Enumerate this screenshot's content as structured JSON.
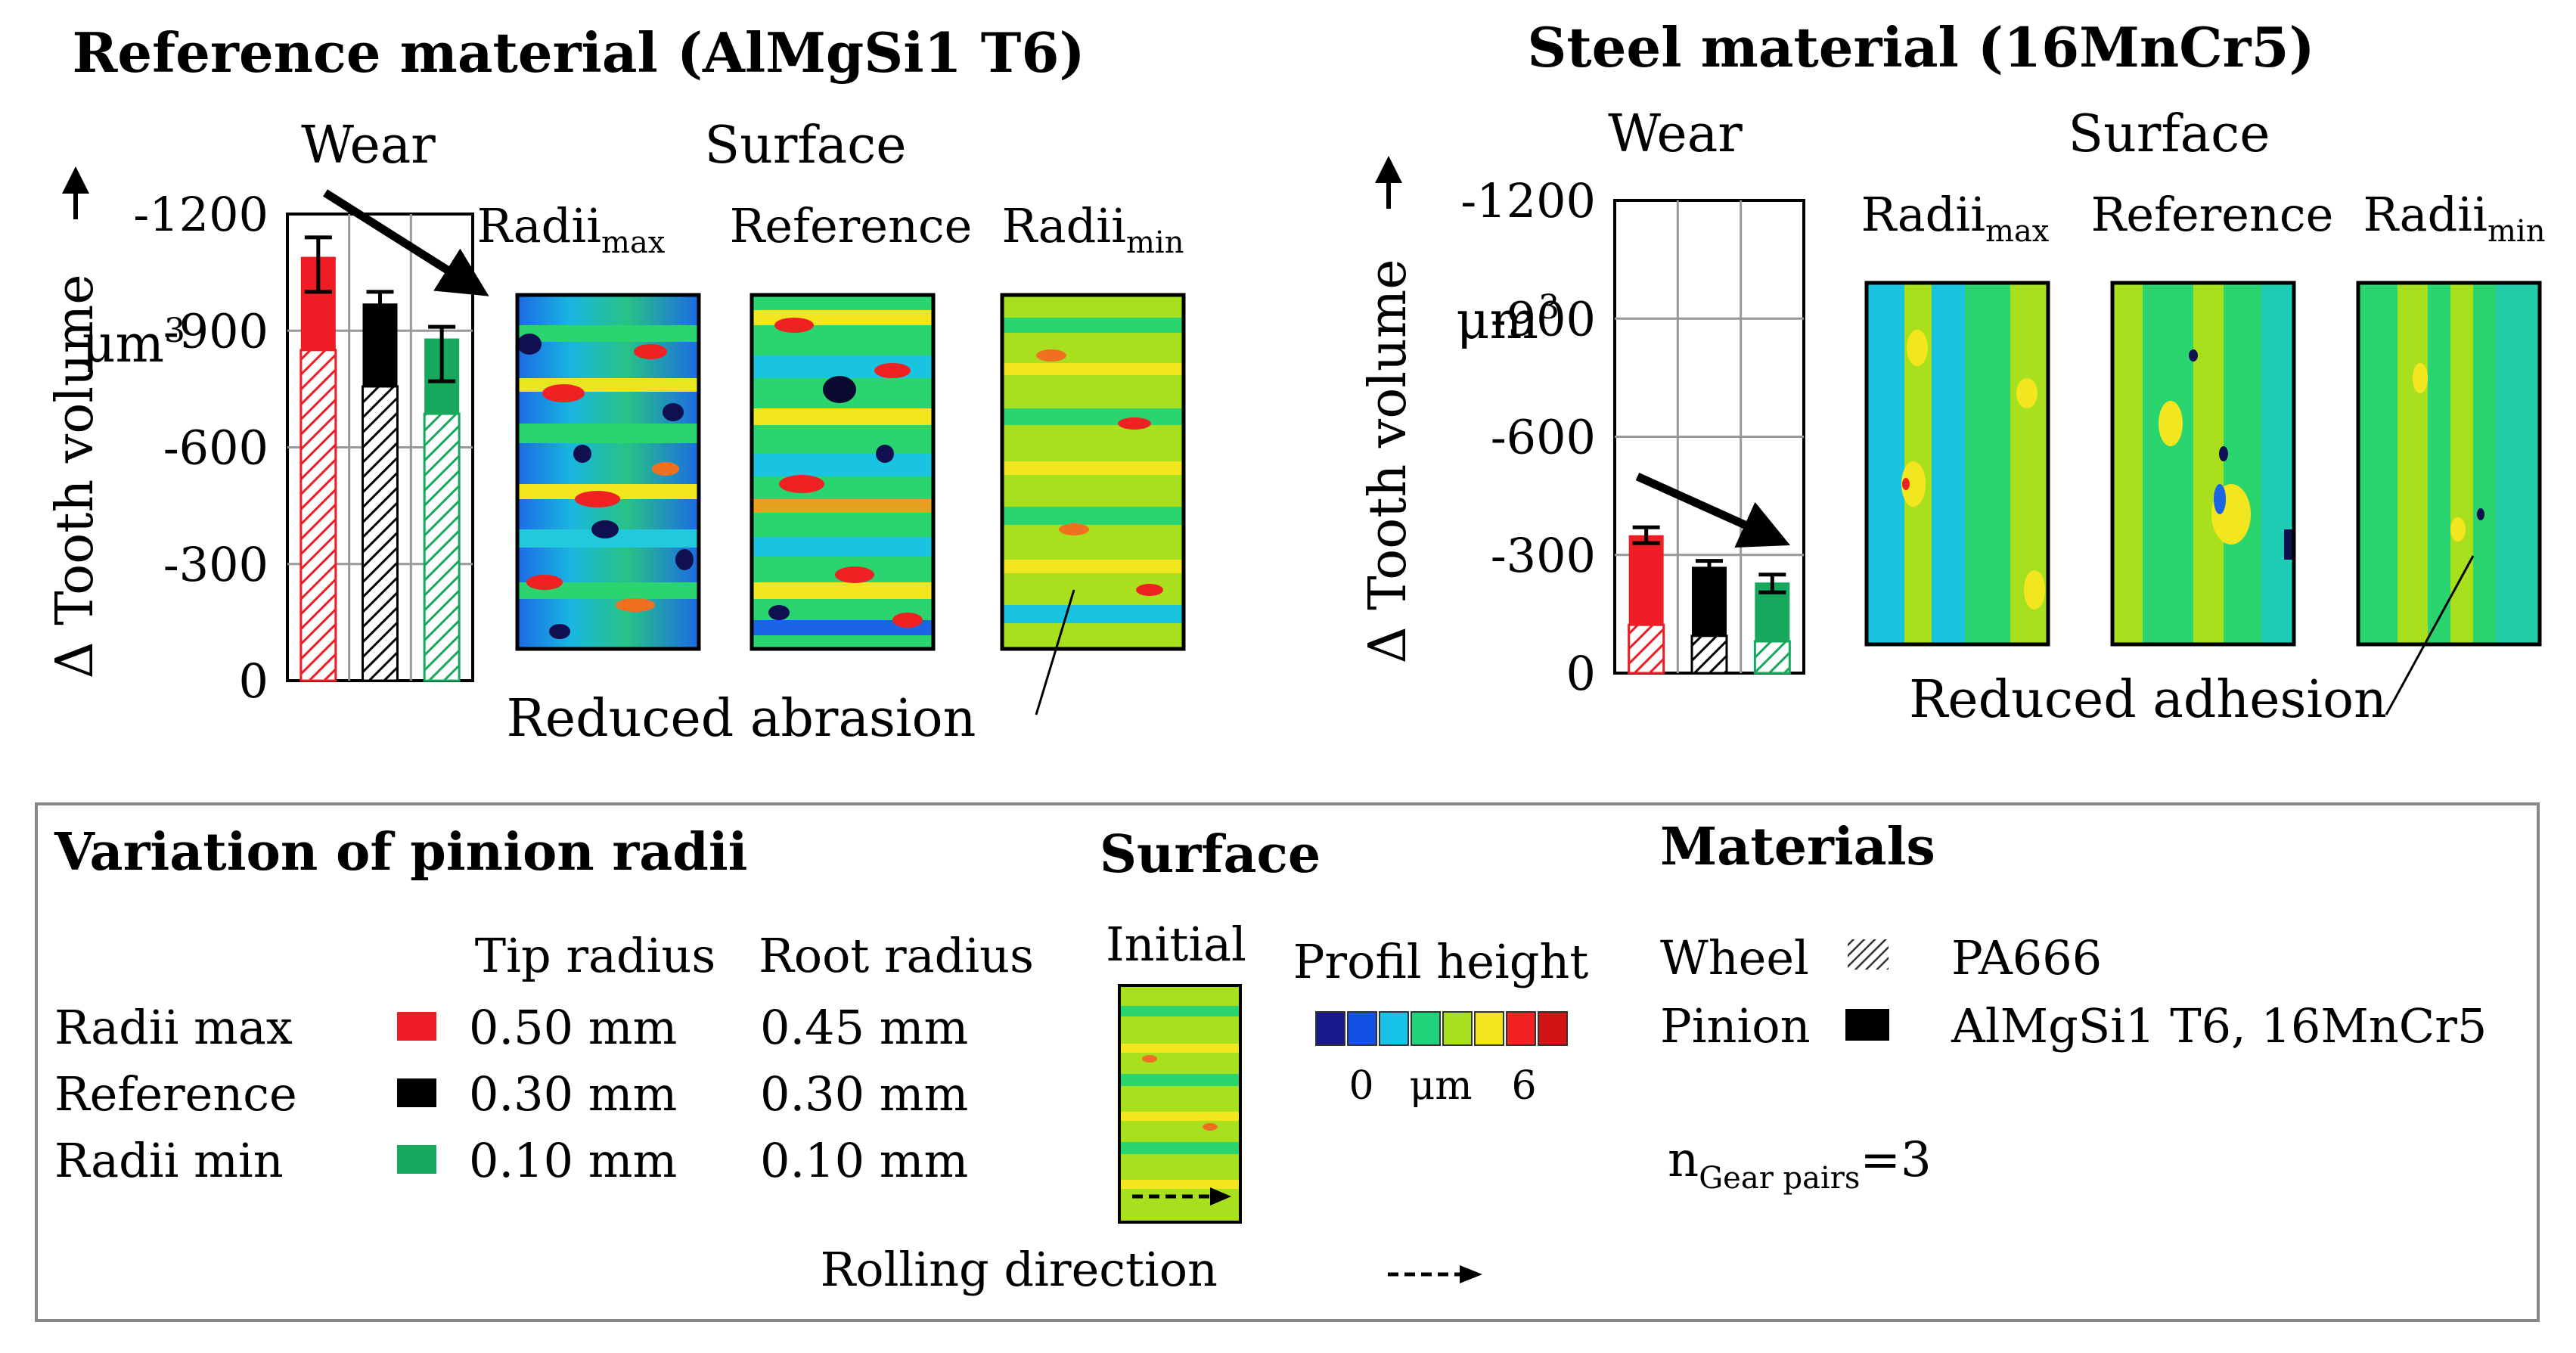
{
  "chart_data": [
    {
      "type": "bar",
      "title": "Reference material (AlMgSi1 T6)",
      "section_wear": "Wear",
      "section_surface": "Surface",
      "ylabel": "Δ Tooth volume",
      "yunit_prefix": "μm",
      "yunit_exp": "3",
      "yticks": [
        "-1200",
        "-900",
        "-600",
        "-300",
        "0"
      ],
      "ylim": [
        0,
        -1200
      ],
      "categories": [
        "Radii max",
        "Reference",
        "Radii min"
      ],
      "values": [
        -1090,
        -970,
        -880
      ],
      "errors": [
        [
          -1000,
          -1140
        ],
        [
          -880,
          -1000
        ],
        [
          -770,
          -910
        ]
      ],
      "colors": [
        "#ee1c25",
        "#000000",
        "#16a85c"
      ],
      "surface_labels": [
        {
          "base": "Radii",
          "sub": "max"
        },
        {
          "base": "Reference",
          "sub": ""
        },
        {
          "base": "Radii",
          "sub": "min"
        }
      ],
      "annotation": "Reduced abrasion"
    },
    {
      "type": "bar",
      "title": "Steel material (16MnCr5)",
      "section_wear": "Wear",
      "section_surface": "Surface",
      "ylabel": "Δ Tooth volume",
      "yunit_prefix": "μm",
      "yunit_exp": "3",
      "yticks": [
        "-1200",
        "-900",
        "-600",
        "-300",
        "0"
      ],
      "ylim": [
        0,
        -1200
      ],
      "categories": [
        "Radii max",
        "Reference",
        "Radii min"
      ],
      "values": [
        -350,
        -270,
        -230
      ],
      "errors": [
        [
          -330,
          -370
        ],
        [
          -250,
          -285
        ],
        [
          -205,
          -250
        ]
      ],
      "colors": [
        "#ee1c25",
        "#000000",
        "#16a85c"
      ],
      "surface_labels": [
        {
          "base": "Radii",
          "sub": "max"
        },
        {
          "base": "Reference",
          "sub": ""
        },
        {
          "base": "Radii",
          "sub": "min"
        }
      ],
      "annotation": "Reduced adhesion"
    }
  ],
  "legend": {
    "variation_title": "Variation of pinion radii",
    "col_tip": "Tip radius",
    "col_root": "Root radius",
    "rows": [
      {
        "name": "Radii max",
        "tip": "0.50 mm",
        "root": "0.45 mm",
        "color": "#ee1c25"
      },
      {
        "name": "Reference",
        "tip": "0.30 mm",
        "root": "0.30 mm",
        "color": "#000000"
      },
      {
        "name": "Radii min",
        "tip": "0.10 mm",
        "root": "0.10 mm",
        "color": "#16a85c"
      }
    ],
    "surface_title": "Surface",
    "initial_label": "Initial",
    "profil_title": "Profil height",
    "scale_colors": [
      "#1a1a8c",
      "#1450e6",
      "#17c3e6",
      "#20d27a",
      "#a8e01e",
      "#f2e61e",
      "#f22222",
      "#d21414"
    ],
    "scale_min": "0",
    "scale_unit": "μm",
    "scale_max": "6",
    "rolling_direction": "Rolling direction",
    "materials_title": "Materials",
    "wheel_label": "Wheel",
    "wheel_material": "PA666",
    "pinion_label": "Pinion",
    "pinion_material": "AlMgSi1 T6, 16MnCr5",
    "n_base": "n",
    "n_sub": "Gear pairs",
    "n_value": "=3"
  }
}
